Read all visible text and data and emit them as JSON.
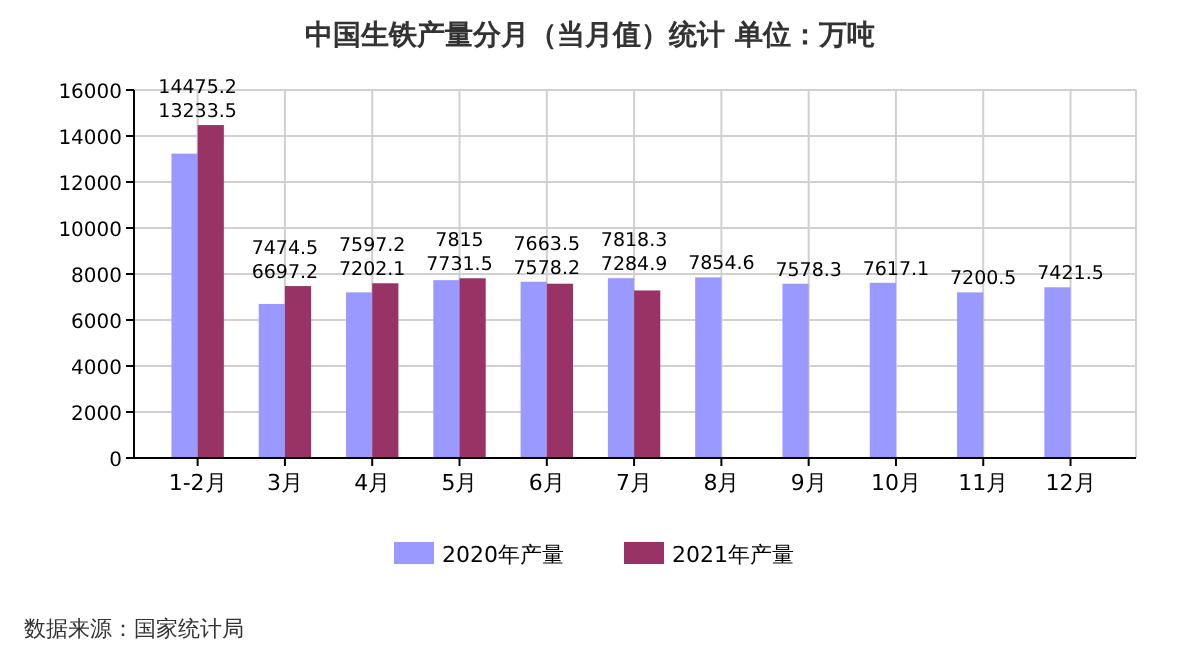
{
  "chart_data": {
    "type": "bar",
    "title": "中国生铁产量分月（当月值）统计 单位：万吨",
    "categories": [
      "1-2月",
      "3月",
      "4月",
      "5月",
      "6月",
      "7月",
      "8月",
      "9月",
      "10月",
      "11月",
      "12月"
    ],
    "series": [
      {
        "name": "2020年产量",
        "color": "#9999ff",
        "values": [
          13233.5,
          6697.2,
          7202.1,
          7731.5,
          7663.5,
          7818.3,
          7854.6,
          7578.3,
          7617.1,
          7200.5,
          7421.5
        ]
      },
      {
        "name": "2021年产量",
        "color": "#993366",
        "values": [
          14475.2,
          7474.5,
          7597.2,
          7815,
          7578.2,
          7284.9,
          null,
          null,
          null,
          null,
          null
        ]
      }
    ],
    "ylim": [
      0,
      16000
    ],
    "yticks": [
      0,
      2000,
      4000,
      6000,
      8000,
      10000,
      12000,
      14000,
      16000
    ],
    "grid": true,
    "legend": "bottom",
    "data_labels": true,
    "annotations": [
      "数据来源：国家统计局"
    ]
  }
}
